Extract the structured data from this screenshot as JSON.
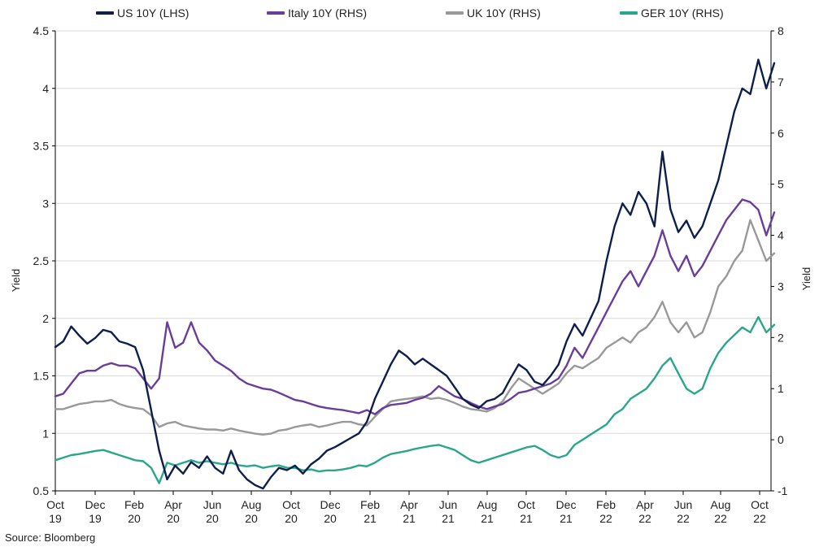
{
  "chart_data": {
    "type": "line",
    "title": "",
    "ylabel_left": "Yield",
    "ylabel_right": "Yield",
    "ylim_left": [
      0.5,
      4.5
    ],
    "ylim_right": [
      -1,
      8
    ],
    "yticks_left": [
      "0.5",
      "1",
      "1.5",
      "2",
      "2.5",
      "3",
      "3.5",
      "4",
      "4.5"
    ],
    "yticks_right": [
      "-1",
      "0",
      "1",
      "2",
      "3",
      "4",
      "5",
      "6",
      "7",
      "8"
    ],
    "xticks": [
      {
        "m": "Oct",
        "y": "19"
      },
      {
        "m": "Dec",
        "y": "19"
      },
      {
        "m": "Feb",
        "y": "20"
      },
      {
        "m": "Apr",
        "y": "20"
      },
      {
        "m": "Jun",
        "y": "20"
      },
      {
        "m": "Aug",
        "y": "20"
      },
      {
        "m": "Oct",
        "y": "20"
      },
      {
        "m": "Dec",
        "y": "20"
      },
      {
        "m": "Feb",
        "y": "21"
      },
      {
        "m": "Apr",
        "y": "21"
      },
      {
        "m": "Jun",
        "y": "21"
      },
      {
        "m": "Aug",
        "y": "21"
      },
      {
        "m": "Oct",
        "y": "21"
      },
      {
        "m": "Dec",
        "y": "21"
      },
      {
        "m": "Feb",
        "y": "22"
      },
      {
        "m": "Apr",
        "y": "22"
      },
      {
        "m": "Jun",
        "y": "22"
      },
      {
        "m": "Aug",
        "y": "22"
      },
      {
        "m": "Oct",
        "y": "22"
      }
    ],
    "x_start": "2019-10",
    "x_end": "2022-10",
    "grid": "horizontal",
    "legend_position": "top",
    "source": "Source: Bloomberg",
    "series": [
      {
        "name": "US 10Y (LHS)",
        "axis": "left",
        "color": "#0e1f4d",
        "values": [
          1.75,
          1.8,
          1.93,
          1.85,
          1.78,
          1.83,
          1.9,
          1.88,
          1.8,
          1.78,
          1.75,
          1.55,
          1.2,
          0.85,
          0.6,
          0.72,
          0.65,
          0.75,
          0.7,
          0.8,
          0.7,
          0.65,
          0.85,
          0.68,
          0.6,
          0.55,
          0.52,
          0.62,
          0.7,
          0.68,
          0.72,
          0.65,
          0.73,
          0.78,
          0.85,
          0.88,
          0.92,
          0.96,
          1.0,
          1.1,
          1.3,
          1.45,
          1.6,
          1.72,
          1.67,
          1.6,
          1.65,
          1.6,
          1.55,
          1.5,
          1.4,
          1.3,
          1.25,
          1.22,
          1.28,
          1.3,
          1.35,
          1.48,
          1.6,
          1.55,
          1.45,
          1.42,
          1.5,
          1.6,
          1.8,
          1.95,
          1.85,
          2.0,
          2.15,
          2.5,
          2.8,
          3.0,
          2.9,
          3.1,
          3.0,
          2.8,
          3.45,
          2.95,
          2.75,
          2.85,
          2.7,
          2.8,
          3.0,
          3.2,
          3.5,
          3.8,
          4.0,
          3.95,
          4.25,
          4.0,
          4.22
        ]
      },
      {
        "name": "Italy 10Y (RHS)",
        "axis": "right",
        "color": "#6a3d9a",
        "values": [
          0.85,
          0.9,
          1.1,
          1.3,
          1.35,
          1.35,
          1.45,
          1.5,
          1.45,
          1.45,
          1.4,
          1.2,
          1.0,
          1.2,
          2.3,
          1.8,
          1.9,
          2.3,
          1.9,
          1.75,
          1.55,
          1.45,
          1.35,
          1.2,
          1.1,
          1.05,
          1.0,
          0.98,
          0.92,
          0.85,
          0.78,
          0.75,
          0.7,
          0.65,
          0.62,
          0.6,
          0.58,
          0.55,
          0.52,
          0.58,
          0.5,
          0.62,
          0.68,
          0.7,
          0.72,
          0.78,
          0.82,
          0.9,
          1.05,
          0.95,
          0.85,
          0.8,
          0.72,
          0.65,
          0.6,
          0.65,
          0.7,
          0.8,
          0.92,
          0.95,
          1.0,
          1.05,
          1.1,
          1.2,
          1.45,
          1.8,
          1.6,
          1.9,
          2.2,
          2.5,
          2.8,
          3.1,
          3.3,
          3.0,
          3.3,
          3.6,
          4.1,
          3.6,
          3.3,
          3.6,
          3.2,
          3.4,
          3.7,
          4.0,
          4.3,
          4.5,
          4.7,
          4.65,
          4.5,
          4.0,
          4.45
        ]
      },
      {
        "name": "UK 10Y (RHS)",
        "axis": "right",
        "color": "#999999",
        "values": [
          0.6,
          0.6,
          0.65,
          0.7,
          0.72,
          0.75,
          0.75,
          0.78,
          0.7,
          0.65,
          0.62,
          0.6,
          0.48,
          0.25,
          0.32,
          0.35,
          0.28,
          0.25,
          0.22,
          0.2,
          0.2,
          0.18,
          0.22,
          0.18,
          0.15,
          0.12,
          0.1,
          0.12,
          0.18,
          0.2,
          0.25,
          0.28,
          0.3,
          0.25,
          0.28,
          0.32,
          0.35,
          0.35,
          0.3,
          0.28,
          0.45,
          0.6,
          0.75,
          0.78,
          0.8,
          0.82,
          0.85,
          0.8,
          0.82,
          0.78,
          0.72,
          0.65,
          0.6,
          0.58,
          0.55,
          0.62,
          0.75,
          1.0,
          1.2,
          1.1,
          1.0,
          0.9,
          1.0,
          1.1,
          1.3,
          1.45,
          1.4,
          1.5,
          1.6,
          1.8,
          1.9,
          2.0,
          1.9,
          2.1,
          2.2,
          2.4,
          2.7,
          2.3,
          2.1,
          2.3,
          2.0,
          2.1,
          2.5,
          3.0,
          3.2,
          3.5,
          3.7,
          4.3,
          3.9,
          3.5,
          3.65
        ]
      },
      {
        "name": "GER 10Y (RHS)",
        "axis": "right",
        "color": "#2aa68a",
        "values": [
          -0.4,
          -0.35,
          -0.3,
          -0.28,
          -0.25,
          -0.22,
          -0.2,
          -0.25,
          -0.3,
          -0.35,
          -0.4,
          -0.42,
          -0.55,
          -0.85,
          -0.45,
          -0.5,
          -0.45,
          -0.4,
          -0.45,
          -0.42,
          -0.45,
          -0.48,
          -0.45,
          -0.5,
          -0.52,
          -0.5,
          -0.55,
          -0.52,
          -0.5,
          -0.55,
          -0.55,
          -0.6,
          -0.58,
          -0.62,
          -0.6,
          -0.6,
          -0.58,
          -0.55,
          -0.5,
          -0.52,
          -0.45,
          -0.35,
          -0.28,
          -0.25,
          -0.22,
          -0.18,
          -0.15,
          -0.12,
          -0.1,
          -0.15,
          -0.2,
          -0.3,
          -0.4,
          -0.45,
          -0.4,
          -0.35,
          -0.3,
          -0.25,
          -0.2,
          -0.15,
          -0.12,
          -0.2,
          -0.3,
          -0.35,
          -0.3,
          -0.1,
          0.0,
          0.1,
          0.2,
          0.3,
          0.5,
          0.6,
          0.8,
          0.9,
          1.0,
          1.2,
          1.45,
          1.6,
          1.3,
          1.0,
          0.9,
          1.0,
          1.4,
          1.7,
          1.9,
          2.05,
          2.2,
          2.1,
          2.4,
          2.1,
          2.25
        ]
      }
    ]
  }
}
